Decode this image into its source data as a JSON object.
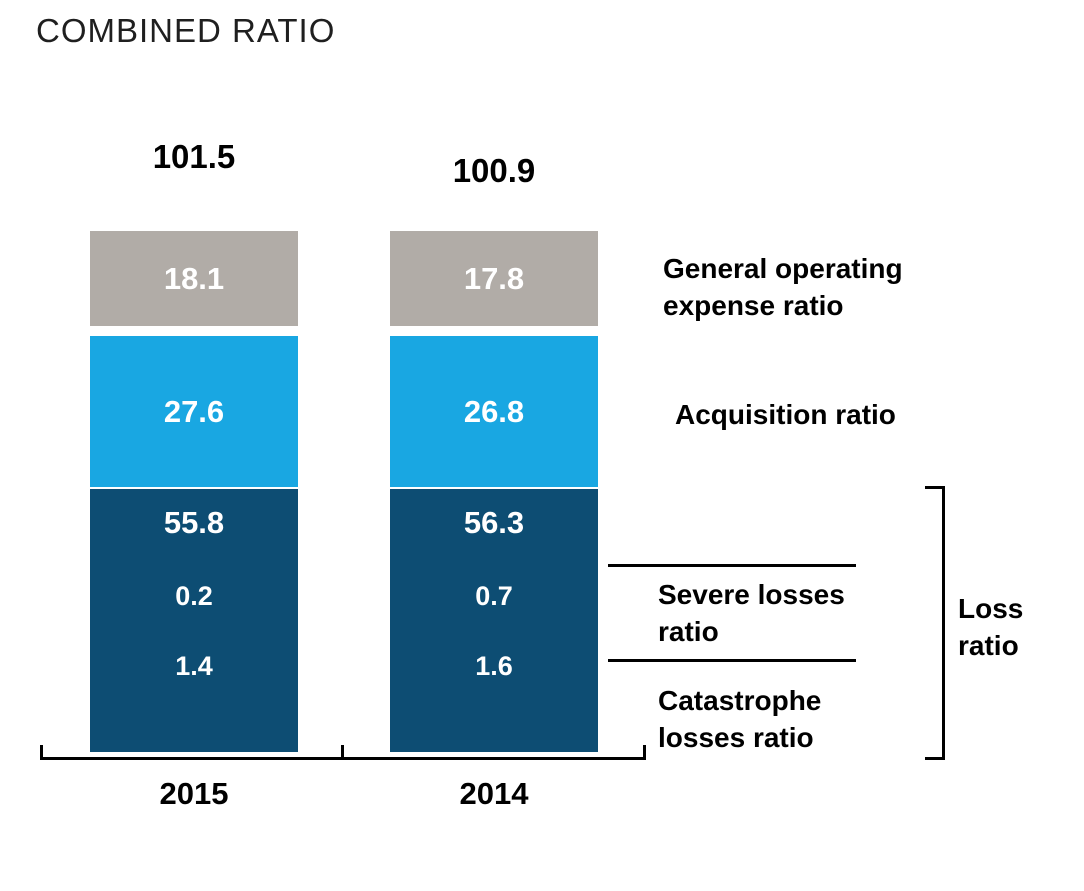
{
  "title": "COMBINED RATIO",
  "colors": {
    "general_operating": "#b1aca7",
    "acquisition": "#19a7e2",
    "loss": "#0d4d73",
    "text_on_bar": "#ffffff",
    "annotation": "#000000"
  },
  "chart_data": {
    "type": "bar",
    "stacked": true,
    "title": "COMBINED RATIO",
    "categories": [
      "2015",
      "2014"
    ],
    "totals": [
      101.5,
      100.9
    ],
    "series": [
      {
        "name": "Loss ratio",
        "values": [
          55.8,
          56.3
        ]
      },
      {
        "name": "Severe losses ratio",
        "values": [
          0.2,
          0.7
        ]
      },
      {
        "name": "Catastrophe losses ratio",
        "values": [
          1.4,
          1.6
        ]
      },
      {
        "name": "Acquisition ratio",
        "values": [
          27.6,
          26.8
        ]
      },
      {
        "name": "General operating expense ratio",
        "values": [
          18.1,
          17.8
        ]
      }
    ],
    "xlabel": "",
    "ylabel": "",
    "grid": false,
    "legend_position": "right"
  },
  "bars": {
    "y2015": {
      "year": "2015",
      "total": "101.5",
      "general_operating": "18.1",
      "acquisition": "27.6",
      "loss": "55.8",
      "severe": "0.2",
      "catastrophe": "1.4"
    },
    "y2014": {
      "year": "2014",
      "total": "100.9",
      "general_operating": "17.8",
      "acquisition": "26.8",
      "loss": "56.3",
      "severe": "0.7",
      "catastrophe": "1.6"
    }
  },
  "annotations": {
    "general_operating": "General operating expense ratio",
    "acquisition": "Acquisition ratio",
    "severe": "Severe losses ratio",
    "catastrophe": "Catastrophe losses ratio",
    "loss_bracket": "Loss ratio"
  }
}
